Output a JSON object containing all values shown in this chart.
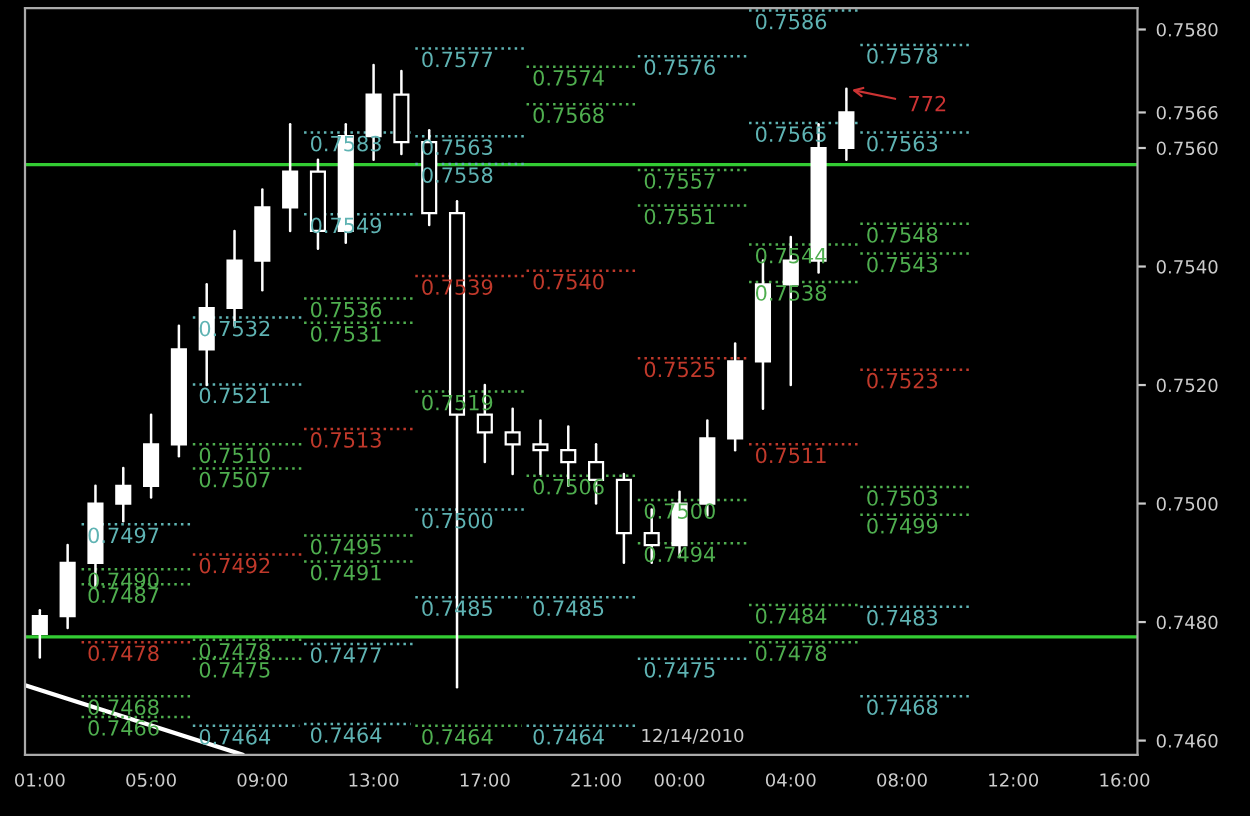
{
  "chart_data": {
    "type": "candlestick",
    "series": [
      {
        "color": "#ffffff",
        "x": [
          "2010-12-13T01:00",
          "2010-12-13T02:00",
          "2010-12-13T03:00",
          "2010-12-13T04:00",
          "2010-12-13T05:00",
          "2010-12-13T06:00",
          "2010-12-13T07:00",
          "2010-12-13T08:00",
          "2010-12-13T09:00",
          "2010-12-13T10:00",
          "2010-12-13T11:00",
          "2010-12-13T12:00",
          "2010-12-13T13:00",
          "2010-12-13T14:00",
          "2010-12-13T15:00",
          "2010-12-13T16:00",
          "2010-12-13T17:00",
          "2010-12-13T18:00",
          "2010-12-13T19:00",
          "2010-12-13T20:00",
          "2010-12-13T21:00",
          "2010-12-13T22:00",
          "2010-12-13T23:00",
          "2010-12-14T00:00",
          "2010-12-14T01:00",
          "2010-12-14T02:00",
          "2010-12-14T03:00",
          "2010-12-14T04:00",
          "2010-12-14T05:00",
          "2010-12-14T06:00"
        ],
        "ohlc": [
          [
            0.7478,
            0.7482,
            0.7474,
            0.7481
          ],
          [
            0.7481,
            0.7493,
            0.7479,
            0.749
          ],
          [
            0.749,
            0.7503,
            0.7486,
            0.75
          ],
          [
            0.75,
            0.7506,
            0.7497,
            0.7503
          ],
          [
            0.7503,
            0.7515,
            0.7501,
            0.751
          ],
          [
            0.751,
            0.753,
            0.7508,
            0.7526
          ],
          [
            0.7526,
            0.7537,
            0.752,
            0.7533
          ],
          [
            0.7533,
            0.7546,
            0.753,
            0.7541
          ],
          [
            0.7541,
            0.7553,
            0.7536,
            0.755
          ],
          [
            0.755,
            0.7564,
            0.7546,
            0.7556
          ],
          [
            0.7556,
            0.7558,
            0.7543,
            0.7546
          ],
          [
            0.7546,
            0.7564,
            0.7544,
            0.7562
          ],
          [
            0.7562,
            0.7574,
            0.7558,
            0.7569
          ],
          [
            0.7569,
            0.7573,
            0.7559,
            0.7561
          ],
          [
            0.7561,
            0.7563,
            0.7547,
            0.7549
          ],
          [
            0.7549,
            0.7551,
            0.7469,
            0.7515
          ],
          [
            0.7515,
            0.752,
            0.7507,
            0.7512
          ],
          [
            0.7512,
            0.7516,
            0.7505,
            0.751
          ],
          [
            0.751,
            0.7514,
            0.7505,
            0.7509
          ],
          [
            0.7509,
            0.7513,
            0.7503,
            0.7507
          ],
          [
            0.7507,
            0.751,
            0.75,
            0.7504
          ],
          [
            0.7504,
            0.7505,
            0.749,
            0.7495
          ],
          [
            0.7495,
            0.7499,
            0.749,
            0.7493
          ],
          [
            0.7493,
            0.7502,
            0.7491,
            0.75
          ],
          [
            0.75,
            0.7514,
            0.7498,
            0.7511
          ],
          [
            0.7511,
            0.7527,
            0.7509,
            0.7524
          ],
          [
            0.7524,
            0.7541,
            0.7516,
            0.7537
          ],
          [
            0.7537,
            0.7545,
            0.752,
            0.7541
          ],
          [
            0.7541,
            0.7564,
            0.7539,
            0.756
          ],
          [
            0.756,
            0.757,
            0.7558,
            0.7566
          ]
        ]
      },
      {
        "type": "line",
        "line_style": "solid",
        "color": "#ffffff",
        "x": [
          "2010-12-13T00:30",
          "2010-12-13T08:18"
        ],
        "values": [
          0.74693,
          0.74576
        ]
      },
      {
        "type": "line",
        "line_style": "dotted",
        "name": "0.7497",
        "color": "#5fb3b3",
        "x": [
          "2010-12-13T02:30",
          "2010-12-13T06:30"
        ],
        "values": [
          0.74965,
          0.74965
        ]
      },
      {
        "type": "line",
        "line_style": "dotted",
        "name": "0.7490",
        "color": "#4fae4f",
        "x": [
          "2010-12-13T02:30",
          "2010-12-13T06:30"
        ],
        "values": [
          0.74889,
          0.74889
        ]
      },
      {
        "type": "line",
        "line_style": "dotted",
        "name": "0.7487",
        "color": "#4fae4f",
        "x": [
          "2010-12-13T02:30",
          "2010-12-13T06:30"
        ],
        "values": [
          0.74864,
          0.74864
        ]
      },
      {
        "type": "line",
        "line_style": "dotted",
        "name": "0.7478",
        "color": "#c0392b",
        "x": [
          "2010-12-13T02:30",
          "2010-12-13T06:30"
        ],
        "values": [
          0.74766,
          0.74766
        ]
      },
      {
        "type": "line",
        "line_style": "dotted",
        "name": "0.7468",
        "color": "#4fae4f",
        "x": [
          "2010-12-13T02:30",
          "2010-12-13T06:30"
        ],
        "values": [
          0.74675,
          0.74675
        ]
      },
      {
        "type": "line",
        "line_style": "dotted",
        "name": "0.7466",
        "color": "#4fae4f",
        "x": [
          "2010-12-13T02:30",
          "2010-12-13T06:30"
        ],
        "values": [
          0.7464,
          0.7464
        ]
      },
      {
        "type": "line",
        "line_style": "dotted",
        "name": "0.7532",
        "color": "#5fb3b3",
        "x": [
          "2010-12-13T06:30",
          "2010-12-13T10:30"
        ],
        "values": [
          0.75314,
          0.75314
        ]
      },
      {
        "type": "line",
        "line_style": "dotted",
        "name": "0.7521",
        "color": "#5fb3b3",
        "x": [
          "2010-12-13T06:30",
          "2010-12-13T10:30"
        ],
        "values": [
          0.75201,
          0.75201
        ]
      },
      {
        "type": "line",
        "line_style": "dotted",
        "name": "0.7510",
        "color": "#4fae4f",
        "x": [
          "2010-12-13T06:30",
          "2010-12-13T10:30"
        ],
        "values": [
          0.751,
          0.751
        ]
      },
      {
        "type": "line",
        "line_style": "dotted",
        "name": "0.7507",
        "color": "#4fae4f",
        "x": [
          "2010-12-13T06:30",
          "2010-12-13T10:30"
        ],
        "values": [
          0.75059,
          0.75059
        ]
      },
      {
        "type": "line",
        "line_style": "dotted",
        "name": "0.7492",
        "color": "#c0392b",
        "x": [
          "2010-12-13T06:30",
          "2010-12-13T10:30"
        ],
        "values": [
          0.74914,
          0.74914
        ]
      },
      {
        "type": "line",
        "line_style": "dotted",
        "name": "0.7478",
        "color": "#4fae4f",
        "x": [
          "2010-12-13T06:30",
          "2010-12-13T10:30"
        ],
        "values": [
          0.7477,
          0.7477
        ]
      },
      {
        "type": "line",
        "line_style": "dotted",
        "name": "0.7475",
        "color": "#4fae4f",
        "x": [
          "2010-12-13T06:30",
          "2010-12-13T10:30"
        ],
        "values": [
          0.74738,
          0.74738
        ]
      },
      {
        "type": "line",
        "line_style": "dotted",
        "name": "0.7464",
        "color": "#5fb3b3",
        "x": [
          "2010-12-13T06:30",
          "2010-12-13T10:20"
        ],
        "values": [
          0.74625,
          0.74625
        ]
      },
      {
        "type": "line",
        "line_style": "dotted",
        "name": "0.7583",
        "color": "#5fb3b3",
        "x": [
          "2010-12-13T10:30",
          "2010-12-13T14:20"
        ],
        "values": [
          0.75626,
          0.75626
        ]
      },
      {
        "type": "line",
        "line_style": "dotted",
        "name": "0.7549",
        "color": "#5fb3b3",
        "x": [
          "2010-12-13T10:30",
          "2010-12-13T14:30"
        ],
        "values": [
          0.75488,
          0.75488
        ]
      },
      {
        "type": "line",
        "line_style": "dotted",
        "name": "0.7536",
        "color": "#4fae4f",
        "x": [
          "2010-12-13T10:30",
          "2010-12-13T14:30"
        ],
        "values": [
          0.75346,
          0.75346
        ]
      },
      {
        "type": "line",
        "line_style": "dotted",
        "name": "0.7531",
        "color": "#4fae4f",
        "x": [
          "2010-12-13T10:30",
          "2010-12-13T14:30"
        ],
        "values": [
          0.75305,
          0.75305
        ]
      },
      {
        "type": "line",
        "line_style": "dotted",
        "name": "0.7513",
        "color": "#c0392b",
        "x": [
          "2010-12-13T10:30",
          "2010-12-13T14:30"
        ],
        "values": [
          0.75126,
          0.75126
        ]
      },
      {
        "type": "line",
        "line_style": "dotted",
        "name": "0.7495",
        "color": "#4fae4f",
        "x": [
          "2010-12-13T10:30",
          "2010-12-13T14:30"
        ],
        "values": [
          0.74946,
          0.74946
        ]
      },
      {
        "type": "line",
        "line_style": "dotted",
        "name": "0.7491",
        "color": "#4fae4f",
        "x": [
          "2010-12-13T10:30",
          "2010-12-13T14:30"
        ],
        "values": [
          0.74902,
          0.74902
        ]
      },
      {
        "type": "line",
        "line_style": "dotted",
        "name": "0.7477",
        "color": "#5fb3b3",
        "x": [
          "2010-12-13T10:30",
          "2010-12-13T14:30"
        ],
        "values": [
          0.74763,
          0.74763
        ]
      },
      {
        "type": "line",
        "line_style": "dotted",
        "name": "0.7464",
        "color": "#5fb3b3",
        "x": [
          "2010-12-13T10:30",
          "2010-12-13T14:20"
        ],
        "values": [
          0.74628,
          0.74628
        ]
      },
      {
        "type": "line",
        "line_style": "dotted",
        "name": "0.7577",
        "color": "#5fb3b3",
        "x": [
          "2010-12-13T14:30",
          "2010-12-13T18:30"
        ],
        "values": [
          0.75768,
          0.75768
        ]
      },
      {
        "type": "line",
        "line_style": "dotted",
        "name": "0.7563",
        "color": "#5fb3b3",
        "x": [
          "2010-12-13T14:30",
          "2010-12-13T18:30"
        ],
        "values": [
          0.7562,
          0.7562
        ]
      },
      {
        "type": "line",
        "line_style": "dotted",
        "name": "0.7558",
        "color": "#5fb3b3",
        "x": [
          "2010-12-13T14:30",
          "2010-12-13T18:30"
        ],
        "values": [
          0.75573,
          0.75573
        ]
      },
      {
        "type": "line",
        "line_style": "dotted",
        "name": "0.7539",
        "color": "#c0392b",
        "x": [
          "2010-12-13T14:30",
          "2010-12-13T18:30"
        ],
        "values": [
          0.75384,
          0.75384
        ]
      },
      {
        "type": "line",
        "line_style": "dotted",
        "name": "0.7519",
        "color": "#4fae4f",
        "x": [
          "2010-12-13T14:30",
          "2010-12-13T18:30"
        ],
        "values": [
          0.75189,
          0.75189
        ]
      },
      {
        "type": "line",
        "line_style": "dotted",
        "name": "0.7500",
        "color": "#5fb3b3",
        "x": [
          "2010-12-13T14:30",
          "2010-12-13T18:30"
        ],
        "values": [
          0.7499,
          0.7499
        ]
      },
      {
        "type": "line",
        "line_style": "dotted",
        "name": "0.7485",
        "color": "#5fb3b3",
        "x": [
          "2010-12-13T14:30",
          "2010-12-13T18:20"
        ],
        "values": [
          0.74842,
          0.74842
        ]
      },
      {
        "type": "line",
        "line_style": "dotted",
        "name": "0.7464",
        "color": "#4fae4f",
        "x": [
          "2010-12-13T14:30",
          "2010-12-13T18:20"
        ],
        "values": [
          0.74625,
          0.74625
        ]
      },
      {
        "type": "line",
        "line_style": "dotted",
        "name": "0.7574",
        "color": "#4fae4f",
        "x": [
          "2010-12-13T18:30",
          "2010-12-13T22:30"
        ],
        "values": [
          0.75737,
          0.75737
        ]
      },
      {
        "type": "line",
        "line_style": "dotted",
        "name": "0.7568",
        "color": "#4fae4f",
        "x": [
          "2010-12-13T18:30",
          "2010-12-13T22:30"
        ],
        "values": [
          0.75674,
          0.75674
        ]
      },
      {
        "type": "line",
        "line_style": "dotted",
        "name": "0.7540",
        "color": "#c0392b",
        "x": [
          "2010-12-13T18:30",
          "2010-12-13T22:30"
        ],
        "values": [
          0.75393,
          0.75393
        ]
      },
      {
        "type": "line",
        "line_style": "dotted",
        "name": "0.7506",
        "color": "#4fae4f",
        "x": [
          "2010-12-13T18:30",
          "2010-12-13T22:30"
        ],
        "values": [
          0.75047,
          0.75047
        ]
      },
      {
        "type": "line",
        "line_style": "dotted",
        "name": "0.7485",
        "color": "#5fb3b3",
        "x": [
          "2010-12-13T18:30",
          "2010-12-13T22:30"
        ],
        "values": [
          0.74842,
          0.74842
        ]
      },
      {
        "type": "line",
        "line_style": "dotted",
        "name": "0.7464",
        "color": "#5fb3b3",
        "x": [
          "2010-12-13T18:30",
          "2010-12-13T22:30"
        ],
        "values": [
          0.74625,
          0.74625
        ]
      },
      {
        "type": "line",
        "line_style": "dotted",
        "name": "0.7576",
        "color": "#5fb3b3",
        "x": [
          "2010-12-13T22:30",
          "2010-12-14T02:30"
        ],
        "values": [
          0.75755,
          0.75755
        ]
      },
      {
        "type": "line",
        "line_style": "dotted",
        "name": "0.7557",
        "color": "#4fae4f",
        "x": [
          "2010-12-13T22:30",
          "2010-12-14T02:30"
        ],
        "values": [
          0.75563,
          0.75563
        ]
      },
      {
        "type": "line",
        "line_style": "dotted",
        "name": "0.7551",
        "color": "#4fae4f",
        "x": [
          "2010-12-13T22:30",
          "2010-12-14T02:30"
        ],
        "values": [
          0.75503,
          0.75503
        ]
      },
      {
        "type": "line",
        "line_style": "dotted",
        "name": "0.7525",
        "color": "#c0392b",
        "x": [
          "2010-12-13T22:30",
          "2010-12-14T02:30"
        ],
        "values": [
          0.75245,
          0.75245
        ]
      },
      {
        "type": "line",
        "line_style": "dotted",
        "name": "0.7500",
        "color": "#4fae4f",
        "x": [
          "2010-12-13T22:30",
          "2010-12-14T02:30"
        ],
        "values": [
          0.75006,
          0.75006
        ]
      },
      {
        "type": "line",
        "line_style": "dotted",
        "name": "0.7494",
        "color": "#4fae4f",
        "x": [
          "2010-12-13T22:30",
          "2010-12-14T02:30"
        ],
        "values": [
          0.74933,
          0.74933
        ]
      },
      {
        "type": "line",
        "line_style": "dotted",
        "name": "0.7475",
        "color": "#5fb3b3",
        "x": [
          "2010-12-13T22:30",
          "2010-12-14T02:30"
        ],
        "values": [
          0.74738,
          0.74738
        ]
      },
      {
        "type": "line",
        "line_style": "dotted",
        "name": "0.7586",
        "color": "#5fb3b3",
        "x": [
          "2010-12-14T02:30",
          "2010-12-14T06:30"
        ],
        "values": [
          0.75832,
          0.75832
        ]
      },
      {
        "type": "line",
        "line_style": "dotted",
        "name": "0.7565",
        "color": "#5fb3b3",
        "x": [
          "2010-12-14T02:30",
          "2010-12-14T06:30"
        ],
        "values": [
          0.75642,
          0.75642
        ]
      },
      {
        "type": "line",
        "line_style": "dotted",
        "name": "0.7544",
        "color": "#4fae4f",
        "x": [
          "2010-12-14T02:30",
          "2010-12-14T06:30"
        ],
        "values": [
          0.75437,
          0.75437
        ]
      },
      {
        "type": "line",
        "line_style": "dotted",
        "name": "0.7538",
        "color": "#4fae4f",
        "x": [
          "2010-12-14T02:30",
          "2010-12-14T06:30"
        ],
        "values": [
          0.75374,
          0.75374
        ]
      },
      {
        "type": "line",
        "line_style": "dotted",
        "name": "0.7511",
        "color": "#c0392b",
        "x": [
          "2010-12-14T02:30",
          "2010-12-14T06:30"
        ],
        "values": [
          0.751,
          0.751
        ]
      },
      {
        "type": "line",
        "line_style": "dotted",
        "name": "0.7484",
        "color": "#4fae4f",
        "x": [
          "2010-12-14T02:30",
          "2010-12-14T06:30"
        ],
        "values": [
          0.74829,
          0.74829
        ]
      },
      {
        "type": "line",
        "line_style": "dotted",
        "name": "0.7478",
        "color": "#4fae4f",
        "x": [
          "2010-12-14T02:30",
          "2010-12-14T06:30"
        ],
        "values": [
          0.74766,
          0.74766
        ]
      },
      {
        "type": "line",
        "line_style": "dotted",
        "name": "0.7578",
        "color": "#5fb3b3",
        "x": [
          "2010-12-14T06:30",
          "2010-12-14T10:30"
        ],
        "values": [
          0.75774,
          0.75774
        ]
      },
      {
        "type": "line",
        "line_style": "dotted",
        "name": "0.7563",
        "color": "#5fb3b3",
        "x": [
          "2010-12-14T06:30",
          "2010-12-14T10:30"
        ],
        "values": [
          0.75626,
          0.75626
        ]
      },
      {
        "type": "line",
        "line_style": "dotted",
        "name": "0.7548",
        "color": "#4fae4f",
        "x": [
          "2010-12-14T06:30",
          "2010-12-14T10:30"
        ],
        "values": [
          0.75472,
          0.75472
        ]
      },
      {
        "type": "line",
        "line_style": "dotted",
        "name": "0.7543",
        "color": "#4fae4f",
        "x": [
          "2010-12-14T06:30",
          "2010-12-14T10:30"
        ],
        "values": [
          0.75422,
          0.75422
        ]
      },
      {
        "type": "line",
        "line_style": "dotted",
        "name": "0.7523",
        "color": "#c0392b",
        "x": [
          "2010-12-14T06:30",
          "2010-12-14T10:30"
        ],
        "values": [
          0.75226,
          0.75226
        ]
      },
      {
        "type": "line",
        "line_style": "dotted",
        "name": "0.7503",
        "color": "#4fae4f",
        "x": [
          "2010-12-14T06:30",
          "2010-12-14T10:30"
        ],
        "values": [
          0.75028,
          0.75028
        ]
      },
      {
        "type": "line",
        "line_style": "dotted",
        "name": "0.7499",
        "color": "#4fae4f",
        "x": [
          "2010-12-14T06:30",
          "2010-12-14T10:30"
        ],
        "values": [
          0.74981,
          0.74981
        ]
      },
      {
        "type": "line",
        "line_style": "dotted",
        "name": "0.7483",
        "color": "#5fb3b3",
        "x": [
          "2010-12-14T06:30",
          "2010-12-14T10:30"
        ],
        "values": [
          0.74826,
          0.74826
        ]
      },
      {
        "type": "line",
        "line_style": "dotted",
        "name": "0.7468",
        "color": "#5fb3b3",
        "x": [
          "2010-12-14T06:30",
          "2010-12-14T10:30"
        ],
        "values": [
          0.74675,
          0.74675
        ]
      }
    ],
    "xlim": [
      "2010-12-13T00:28",
      "2010-12-14T16:28"
    ],
    "ylim": [
      0.74576,
      0.75836
    ],
    "xticks": [
      {
        "value": "2010-12-13T01:00",
        "label": "01:00"
      },
      {
        "value": "2010-12-13T05:00",
        "label": "05:00"
      },
      {
        "value": "2010-12-13T09:00",
        "label": "09:00"
      },
      {
        "value": "2010-12-13T13:00",
        "label": "13:00"
      },
      {
        "value": "2010-12-13T17:00",
        "label": "17:00"
      },
      {
        "value": "2010-12-13T21:00",
        "label": "21:00"
      },
      {
        "value": "2010-12-14T00:00",
        "label": "00:00"
      },
      {
        "value": "2010-12-14T04:00",
        "label": "04:00"
      },
      {
        "value": "2010-12-14T08:00",
        "label": "08:00"
      },
      {
        "value": "2010-12-14T12:00",
        "label": "12:00"
      },
      {
        "value": "2010-12-14T16:00",
        "label": "16:00"
      }
    ],
    "yticks": [
      {
        "value": 0.746,
        "label": "0.7460"
      },
      {
        "value": 0.748,
        "label": "0.7480"
      },
      {
        "value": 0.75,
        "label": "0.7500"
      },
      {
        "value": 0.752,
        "label": "0.7520"
      },
      {
        "value": 0.754,
        "label": "0.7540"
      },
      {
        "value": 0.756,
        "label": "0.7560"
      },
      {
        "value": 0.7566,
        "label": "0.7566"
      },
      {
        "value": 0.758,
        "label": "0.7580"
      }
    ],
    "ref_lines": [
      {
        "axis": "y",
        "value": 0.75572,
        "color": "#33cc33"
      },
      {
        "axis": "y",
        "value": 0.74775,
        "color": "#33cc33"
      }
    ],
    "grid": false,
    "annotations": [
      {
        "text": "772",
        "x": "2010-12-14T06:00",
        "y": 0.757
      },
      "12/14/2010"
    ]
  }
}
